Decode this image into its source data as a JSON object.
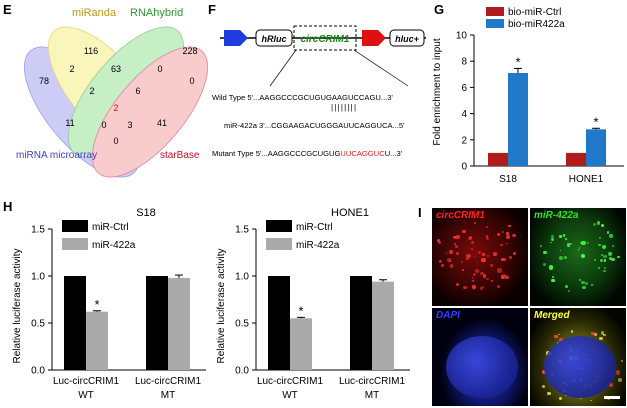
{
  "panels": {
    "E": {
      "label": "E",
      "sets": [
        {
          "name": "miRanda",
          "color": "#d6b846"
        },
        {
          "name": "RNAhybrid",
          "color": "#3aa03a"
        },
        {
          "name": "miRNA microarray",
          "color": "#3d3fd6"
        },
        {
          "name": "starBase",
          "color": "#c0102a"
        }
      ],
      "counts": {
        "only_microarray": "78",
        "only_miRanda": "116",
        "only_RNAhybrid": "228",
        "only_starBase": "0",
        "microarray_miRanda": "2",
        "miRanda_RNAhybrid": "63",
        "RNAhybrid_starBase": "0",
        "micro_miR_RNAh": "2",
        "miR_RNAh_star": "6",
        "micro_star": "0",
        "all_four": "2",
        "micro_miR_star": "11",
        "micro_RNAh_star": "3",
        "RNAh_star_b": "41",
        "miR_star": "0"
      }
    },
    "F": {
      "label": "F",
      "constructs": {
        "left": "hRluc",
        "middle": "circCRIM1",
        "right": "hluc+"
      },
      "rows": [
        {
          "label": "Wild Type",
          "prefix": "5'...",
          "seq": "AAGGCCCGCUGUGAAGUCCAGU",
          "suffix": "...3'"
        },
        {
          "label": "miR-422a",
          "prefix": "3'...",
          "seq": "CGGAAGACUGGGAUUCAGGUCA",
          "suffix": "...5'"
        },
        {
          "label": "Mutant Type",
          "prefix": "5'...",
          "seq": "AAGGCCCGCUGUG",
          "mut": "UUCAGGUC",
          "seq2": "U",
          "suffix": "...3'"
        }
      ],
      "pairing_bars": "||||||||",
      "mut_color": "#e02020"
    },
    "G": {
      "label": "G",
      "legend": [
        "bio-miR-Ctrl",
        "bio-miR422a"
      ],
      "colors": [
        "#b01c1c",
        "#1f78c8"
      ],
      "ylabel": "Fold enrichment to input",
      "categories": [
        "S18",
        "HONE1"
      ],
      "yticks": [
        "0",
        "2",
        "4",
        "6",
        "8",
        "10"
      ],
      "star": "*"
    },
    "H": {
      "label": "H",
      "star": "*",
      "legend": [
        "miR-Ctrl",
        "miR-422a"
      ],
      "colors": [
        "#000000",
        "#aaaaaa"
      ],
      "ylabel": "Relative luciferase activity",
      "yticks": [
        "0.0",
        "0.5",
        "1.0",
        "1.5"
      ],
      "xgroup": [
        "Luc-circCRIM1",
        "Luc-circCRIM1"
      ],
      "xsub": [
        "WT",
        "MT"
      ],
      "charts": [
        "S18",
        "HONE1"
      ]
    },
    "I": {
      "label": "I",
      "tiles": [
        "circCRIM1",
        "miR-422a",
        "DAPI",
        "Merged"
      ],
      "tile_colors": [
        "#ff2020",
        "#30e030",
        "#3040ff",
        "#ffff40"
      ]
    }
  },
  "chart_data": [
    {
      "type": "bar",
      "title": "",
      "categories": [
        "S18",
        "HONE1"
      ],
      "series": [
        {
          "name": "bio-miR-Ctrl",
          "values": [
            1.0,
            1.0
          ]
        },
        {
          "name": "bio-miR422a",
          "values": [
            7.1,
            2.8
          ]
        }
      ],
      "errors": [
        [
          0,
          0
        ],
        [
          0.35,
          0.08
        ]
      ],
      "ylabel": "Fold enrichment to input",
      "ylim": [
        0,
        10
      ]
    },
    {
      "type": "bar",
      "title": "S18",
      "categories": [
        "WT",
        "MT"
      ],
      "series": [
        {
          "name": "miR-Ctrl",
          "values": [
            1.0,
            1.0
          ]
        },
        {
          "name": "miR-422a",
          "values": [
            0.62,
            0.98
          ]
        }
      ],
      "errors": [
        [
          0,
          0
        ],
        [
          0.01,
          0.03
        ]
      ],
      "ylabel": "Relative luciferase activity",
      "ylim": [
        0,
        1.5
      ]
    },
    {
      "type": "bar",
      "title": "HONE1",
      "categories": [
        "WT",
        "MT"
      ],
      "series": [
        {
          "name": "miR-Ctrl",
          "values": [
            1.0,
            1.0
          ]
        },
        {
          "name": "miR-422a",
          "values": [
            0.55,
            0.94
          ]
        }
      ],
      "errors": [
        [
          0,
          0
        ],
        [
          0.01,
          0.02
        ]
      ],
      "ylabel": "Relative luciferase activity",
      "ylim": [
        0,
        1.5
      ]
    }
  ]
}
